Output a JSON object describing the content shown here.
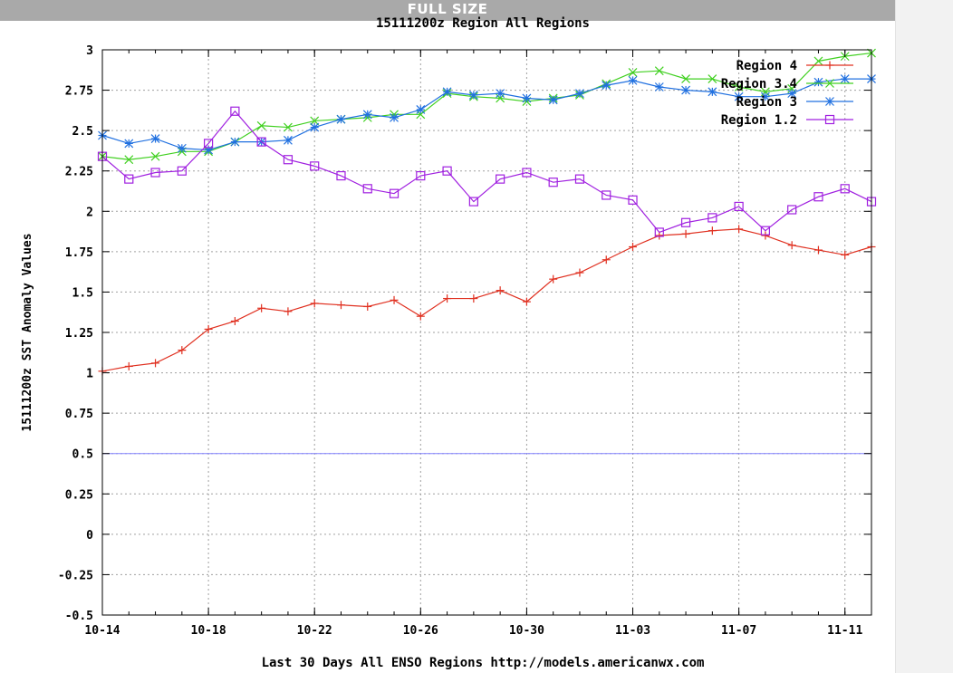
{
  "page": {
    "header_label": "FULL SIZE"
  },
  "chart_data": {
    "type": "line",
    "title": "15111200z Region All Regions",
    "xlabel": "Last 30 Days All ENSO Regions http://models.americanwx.com",
    "ylabel": "15111200z SST Anomaly Values",
    "ylim": [
      -0.5,
      3
    ],
    "yticks": [
      "-0.5",
      "-0.25",
      "0",
      "0.25",
      "0.5",
      "0.75",
      "1",
      "1.25",
      "1.5",
      "1.75",
      "2",
      "2.25",
      "2.5",
      "2.75",
      "3"
    ],
    "xticks": [
      "10-14",
      "10-18",
      "10-22",
      "10-26",
      "10-30",
      "11-03",
      "11-07",
      "11-11"
    ],
    "grid": true,
    "legend": "top-right",
    "reference_line": {
      "y": 0.5,
      "color": "#8080ff"
    },
    "x": [
      "10-14",
      "10-15",
      "10-16",
      "10-17",
      "10-18",
      "10-19",
      "10-20",
      "10-21",
      "10-22",
      "10-23",
      "10-24",
      "10-25",
      "10-26",
      "10-27",
      "10-28",
      "10-29",
      "10-30",
      "10-31",
      "11-01",
      "11-02",
      "11-03",
      "11-04",
      "11-05",
      "11-06",
      "11-07",
      "11-08",
      "11-09",
      "11-10",
      "11-11",
      "11-12"
    ],
    "series": [
      {
        "name": "Region 4",
        "color": "#e03020",
        "marker": "plus",
        "values": [
          1.01,
          1.04,
          1.06,
          1.14,
          1.27,
          1.32,
          1.4,
          1.38,
          1.43,
          1.42,
          1.41,
          1.45,
          1.35,
          1.46,
          1.46,
          1.51,
          1.44,
          1.58,
          1.62,
          1.7,
          1.78,
          1.85,
          1.86,
          1.88,
          1.89,
          1.85,
          1.79,
          1.76,
          1.73,
          1.78
        ]
      },
      {
        "name": "Region 3.4",
        "color": "#40d020",
        "marker": "cross",
        "values": [
          2.34,
          2.32,
          2.34,
          2.37,
          2.37,
          2.43,
          2.53,
          2.52,
          2.56,
          2.57,
          2.58,
          2.6,
          2.6,
          2.73,
          2.71,
          2.7,
          2.68,
          2.7,
          2.72,
          2.79,
          2.86,
          2.87,
          2.82,
          2.82,
          2.77,
          2.74,
          2.76,
          2.93,
          2.96,
          2.98
        ]
      },
      {
        "name": "Region 3",
        "color": "#2070e0",
        "marker": "star",
        "values": [
          2.47,
          2.42,
          2.45,
          2.39,
          2.38,
          2.43,
          2.43,
          2.44,
          2.52,
          2.57,
          2.6,
          2.58,
          2.63,
          2.74,
          2.72,
          2.73,
          2.7,
          2.69,
          2.73,
          2.78,
          2.81,
          2.77,
          2.75,
          2.74,
          2.71,
          2.71,
          2.73,
          2.8,
          2.82,
          2.82
        ]
      },
      {
        "name": "Region 1.2",
        "color": "#a020e0",
        "marker": "square",
        "values": [
          2.34,
          2.2,
          2.24,
          2.25,
          2.42,
          2.62,
          2.43,
          2.32,
          2.28,
          2.22,
          2.14,
          2.11,
          2.22,
          2.25,
          2.06,
          2.2,
          2.24,
          2.18,
          2.2,
          2.1,
          2.07,
          1.87,
          1.93,
          1.96,
          2.03,
          1.88,
          2.01,
          2.09,
          2.14,
          2.06
        ]
      }
    ]
  }
}
